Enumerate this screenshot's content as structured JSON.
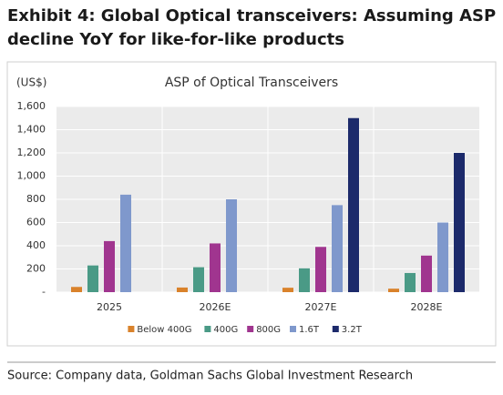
{
  "header": {
    "title": "Exhibit 4: Global Optical transceivers: Assuming ASP decline YoY for like-for-like products"
  },
  "chart_data": {
    "type": "bar",
    "title": "ASP of Optical Transceivers",
    "y_label": "(US$)",
    "categories": [
      "2025",
      "2026E",
      "2027E",
      "2028E"
    ],
    "series": [
      {
        "name": "Below 400G",
        "color": "#d9822b",
        "values": [
          45,
          40,
          38,
          30
        ]
      },
      {
        "name": "400G",
        "color": "#4a9a86",
        "values": [
          230,
          215,
          205,
          165
        ]
      },
      {
        "name": "800G",
        "color": "#a0358f",
        "values": [
          440,
          420,
          390,
          315
        ]
      },
      {
        "name": "1.6T",
        "color": "#7f98cc",
        "values": [
          840,
          800,
          750,
          600
        ]
      },
      {
        "name": "3.2T",
        "color": "#1c2a6b",
        "values": [
          null,
          null,
          1500,
          1200
        ]
      }
    ],
    "ylim": [
      0,
      1600
    ],
    "yticks": [
      {
        "value": 0,
        "label": "-"
      },
      200,
      400,
      600,
      800,
      {
        "value": 1000,
        "label": "1,000"
      },
      {
        "value": 1200,
        "label": "1,200"
      },
      {
        "value": 1400,
        "label": "1,400"
      },
      {
        "value": 1600,
        "label": "1,600"
      }
    ],
    "grid": true,
    "legend": "bottom"
  },
  "footer": {
    "source": "Source: Company data, Goldman Sachs Global Investment Research"
  }
}
